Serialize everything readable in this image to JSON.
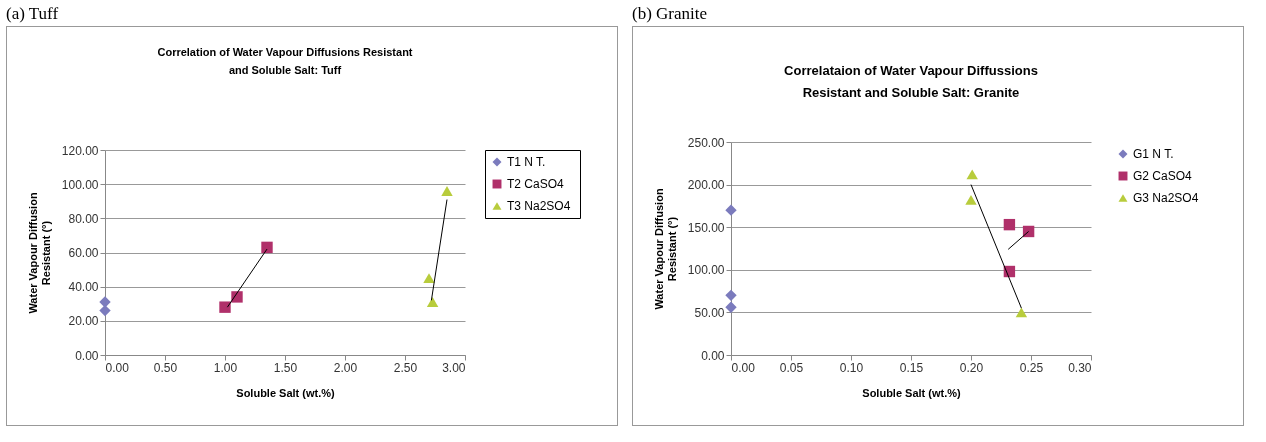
{
  "chart_data": [
    {
      "type": "scatter",
      "title": [
        "Correlation of Water Vapour Diffusions Resistant",
        "and Soluble Salt: Tuff"
      ],
      "xlabel": "Soluble Salt (wt.%)",
      "ylabel": [
        "Water Vapour Diffusion",
        "Resistant (°)"
      ],
      "annotations": [
        "(a) Tuff"
      ],
      "xlim": [
        0,
        3
      ],
      "xticks": [
        {
          "value": 0,
          "label": "0.00"
        },
        {
          "value": 0.5,
          "label": "0.50"
        },
        {
          "value": 1,
          "label": "1.00"
        },
        {
          "value": 1.5,
          "label": "1.50"
        },
        {
          "value": 2,
          "label": "2.00"
        },
        {
          "value": 2.5,
          "label": "2.50"
        },
        {
          "value": 3,
          "label": "3.00"
        }
      ],
      "ylim": [
        0,
        120
      ],
      "yticks": [
        {
          "value": 0,
          "label": "0.00"
        },
        {
          "value": 20,
          "label": "20.00"
        },
        {
          "value": 40,
          "label": "40.00"
        },
        {
          "value": 60,
          "label": "60.00"
        },
        {
          "value": 80,
          "label": "80.00"
        },
        {
          "value": 100,
          "label": "100.00"
        },
        {
          "value": 120,
          "label": "120.00"
        }
      ],
      "grid": "y",
      "legend": "right",
      "series": [
        {
          "name": "T1  N T.",
          "color": "#7b7bbd",
          "marker": "diamond",
          "x": [
            0,
            0
          ],
          "values": [
            31,
            26
          ]
        },
        {
          "name": "T2  CaSO4",
          "color": "#b0306a",
          "marker": "square",
          "x": [
            1.0,
            1.1,
            1.35
          ],
          "values": [
            28,
            34,
            63
          ]
        },
        {
          "name": "T3  Na2SO4",
          "color": "#b8cc3c",
          "marker": "triangle",
          "x": [
            2.7,
            2.73,
            2.85
          ],
          "values": [
            45,
            31,
            96
          ]
        },
        {
          "type": "line",
          "color": "#000000",
          "x": [
            1.02,
            1.35
          ],
          "values": [
            28,
            62
          ]
        },
        {
          "type": "line",
          "color": "#000000",
          "x": [
            2.72,
            2.85
          ],
          "values": [
            32,
            91
          ]
        }
      ]
    },
    {
      "type": "scatter",
      "title": [
        "Correlataion of Water Vapour Diffussions",
        "Resistant and Soluble Salt: Granite"
      ],
      "xlabel": "Soluble Salt (wt.%)",
      "ylabel": [
        "Water Vapour Diffusion",
        "Resistant (°)"
      ],
      "annotations": [
        "(b) Granite"
      ],
      "xlim": [
        0,
        0.3
      ],
      "xticks": [
        {
          "value": 0,
          "label": "0.00"
        },
        {
          "value": 0.05,
          "label": "0.05"
        },
        {
          "value": 0.1,
          "label": "0.10"
        },
        {
          "value": 0.15,
          "label": "0.15"
        },
        {
          "value": 0.2,
          "label": "0.20"
        },
        {
          "value": 0.25,
          "label": "0.25"
        },
        {
          "value": 0.3,
          "label": "0.30"
        }
      ],
      "ylim": [
        0,
        250
      ],
      "yticks": [
        {
          "value": 0,
          "label": "0.00"
        },
        {
          "value": 50,
          "label": "50.00"
        },
        {
          "value": 100,
          "label": "100.00"
        },
        {
          "value": 150,
          "label": "150.00"
        },
        {
          "value": 200,
          "label": "200.00"
        },
        {
          "value": 250,
          "label": "250.00"
        }
      ],
      "grid": "y",
      "legend": "right",
      "series": [
        {
          "name": "G1  N T.",
          "color": "#7b7bbd",
          "marker": "diamond",
          "x": [
            0,
            0,
            0
          ],
          "values": [
            170,
            70,
            56
          ]
        },
        {
          "name": "G2  CaSO4",
          "color": "#b0306a",
          "marker": "square",
          "x": [
            0.232,
            0.248,
            0.232
          ],
          "values": [
            153,
            145,
            98
          ]
        },
        {
          "name": "G3  Na2SO4",
          "color": "#b8cc3c",
          "marker": "triangle",
          "x": [
            0.201,
            0.2,
            0.242
          ],
          "values": [
            212,
            182,
            50
          ]
        },
        {
          "type": "line",
          "color": "#000000",
          "x": [
            0.231,
            0.248
          ],
          "values": [
            124,
            145
          ]
        },
        {
          "type": "line",
          "color": "#000000",
          "x": [
            0.2,
            0.242
          ],
          "values": [
            200,
            55
          ]
        }
      ]
    }
  ]
}
